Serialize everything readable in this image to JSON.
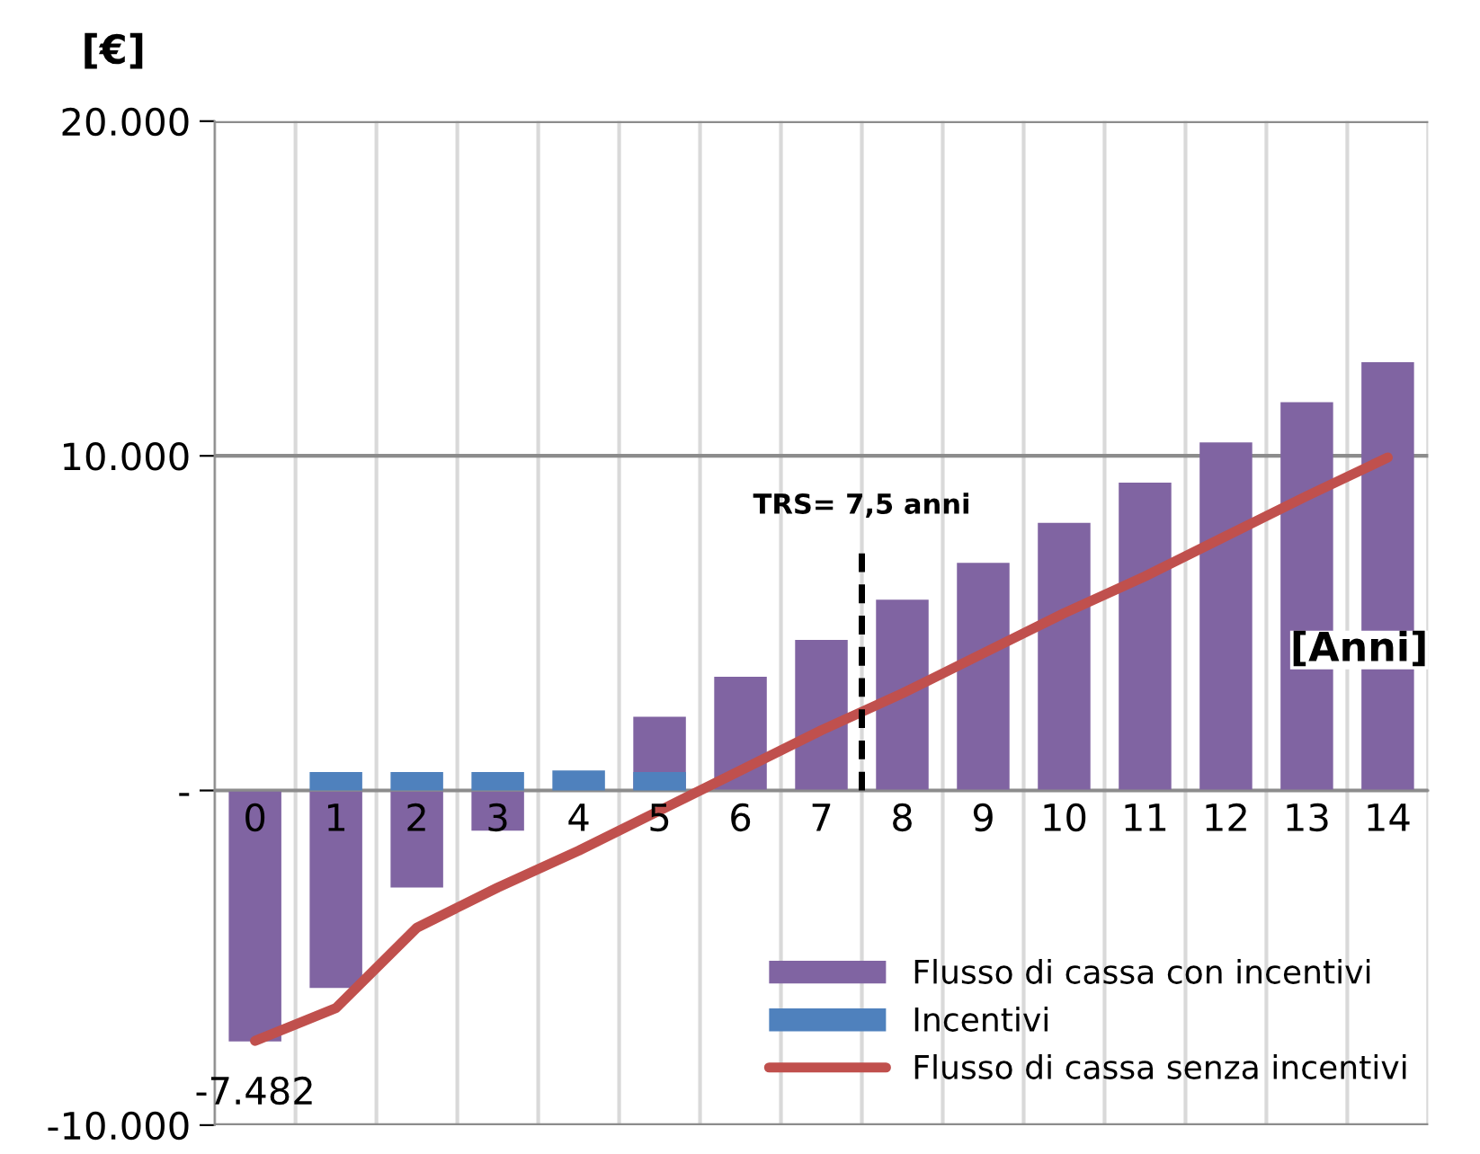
{
  "chart_data": {
    "type": "bar",
    "ylabel": "[€]",
    "xlabel": "[Anni]",
    "categories": [
      "0",
      "1",
      "2",
      "3",
      "4",
      "5",
      "6",
      "7",
      "8",
      "9",
      "10",
      "11",
      "12",
      "13",
      "14"
    ],
    "series": [
      {
        "name": "Flusso di cassa con incentivi",
        "color": "#8064a2",
        "values": [
          -7500,
          -5900,
          -2900,
          -1200,
          null,
          2200,
          3400,
          4500,
          5700,
          6800,
          8000,
          9200,
          10400,
          11600,
          12800
        ]
      },
      {
        "name": "Incentivi",
        "color": "#4f81bd",
        "values": [
          null,
          550,
          550,
          550,
          600,
          550,
          null,
          null,
          null,
          null,
          null,
          null,
          null,
          null,
          null
        ]
      },
      {
        "name": "Flusso di cassa senza incentivi",
        "type": "line",
        "color": "#c0504d",
        "values": [
          -7482,
          -6500,
          -4100,
          -2900,
          -1800,
          -600,
          600,
          1800,
          2900,
          4100,
          5300,
          6400,
          7600,
          8800,
          9950
        ]
      }
    ],
    "annotations": [
      "TRS= 7,5 anni",
      {
        "text": "-7.482",
        "x": "0",
        "y": -7482
      }
    ],
    "ylim": [
      -10000,
      20000
    ],
    "yticks": [
      {
        "value": 20000,
        "label": "20.000"
      },
      {
        "value": 10000,
        "label": "10.000"
      },
      {
        "value": 0,
        "label": "-"
      },
      {
        "value": -10000,
        "label": "-10.000"
      }
    ],
    "grid": true,
    "legend": "bottom right"
  }
}
